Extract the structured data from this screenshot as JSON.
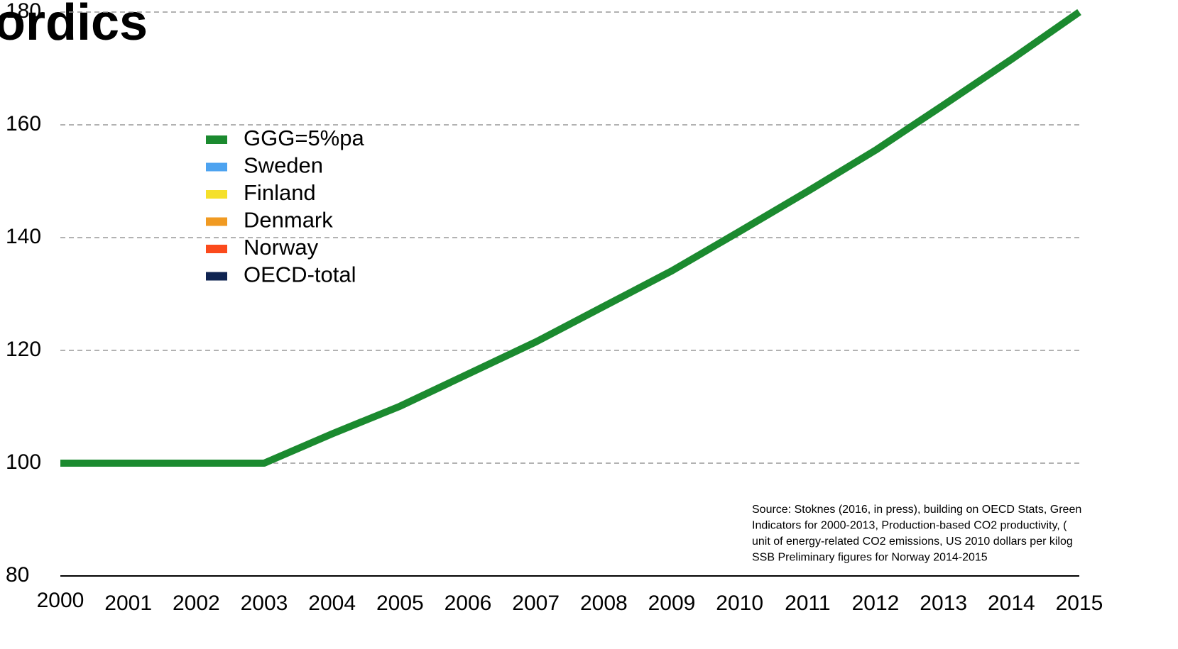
{
  "chart_data": {
    "type": "line",
    "title": "ordics",
    "x": [
      2000,
      2001,
      2002,
      2003,
      2004,
      2005,
      2006,
      2007,
      2008,
      2009,
      2010,
      2011,
      2012,
      2013,
      2014,
      2015
    ],
    "series": [
      {
        "name": "GGG=5%pa",
        "color": "#1b8a2f",
        "values": [
          100,
          100,
          100,
          100,
          105.2,
          110.1,
          115.8,
          121.5,
          127.8,
          134.1,
          141.1,
          148.2,
          155.5,
          163.5,
          171.6,
          180
        ]
      },
      {
        "name": "Sweden",
        "color": "#4da3f0",
        "values": [
          null,
          null,
          null,
          null,
          null,
          null,
          null,
          null,
          null,
          null,
          null,
          null,
          null,
          null,
          null,
          null
        ]
      },
      {
        "name": "Finland",
        "color": "#f5e02a",
        "values": [
          null,
          null,
          null,
          null,
          null,
          null,
          null,
          null,
          null,
          null,
          null,
          null,
          null,
          null,
          null,
          null
        ]
      },
      {
        "name": "Denmark",
        "color": "#f09a22",
        "values": [
          null,
          null,
          null,
          null,
          null,
          null,
          null,
          null,
          null,
          null,
          null,
          null,
          null,
          null,
          null,
          null
        ]
      },
      {
        "name": "Norway",
        "color": "#fb4a1c",
        "values": [
          null,
          null,
          null,
          null,
          null,
          null,
          null,
          null,
          null,
          null,
          null,
          null,
          null,
          null,
          null,
          null
        ]
      },
      {
        "name": "OECD-total",
        "color": "#0f2451",
        "values": [
          null,
          null,
          null,
          null,
          null,
          null,
          null,
          null,
          null,
          null,
          null,
          null,
          null,
          null,
          null,
          null
        ]
      }
    ],
    "xlim": [
      2000,
      2015
    ],
    "xticks": [
      2000,
      2001,
      2002,
      2003,
      2004,
      2005,
      2006,
      2007,
      2008,
      2009,
      2010,
      2011,
      2012,
      2013,
      2014,
      2015
    ],
    "ylim": [
      80,
      180
    ],
    "yticks": [
      80,
      100,
      120,
      140,
      160,
      180
    ],
    "grid": true,
    "legend": "upper left",
    "annotation": [
      "Source: Stoknes (2016, in press), building on OECD Stats, Green",
      "Indicators for 2000-2013, Production-based CO2 productivity, (",
      "unit of energy-related CO2 emissions, US 2010 dollars per kilog",
      "SSB Preliminary figures for Norway 2014-2015"
    ]
  }
}
